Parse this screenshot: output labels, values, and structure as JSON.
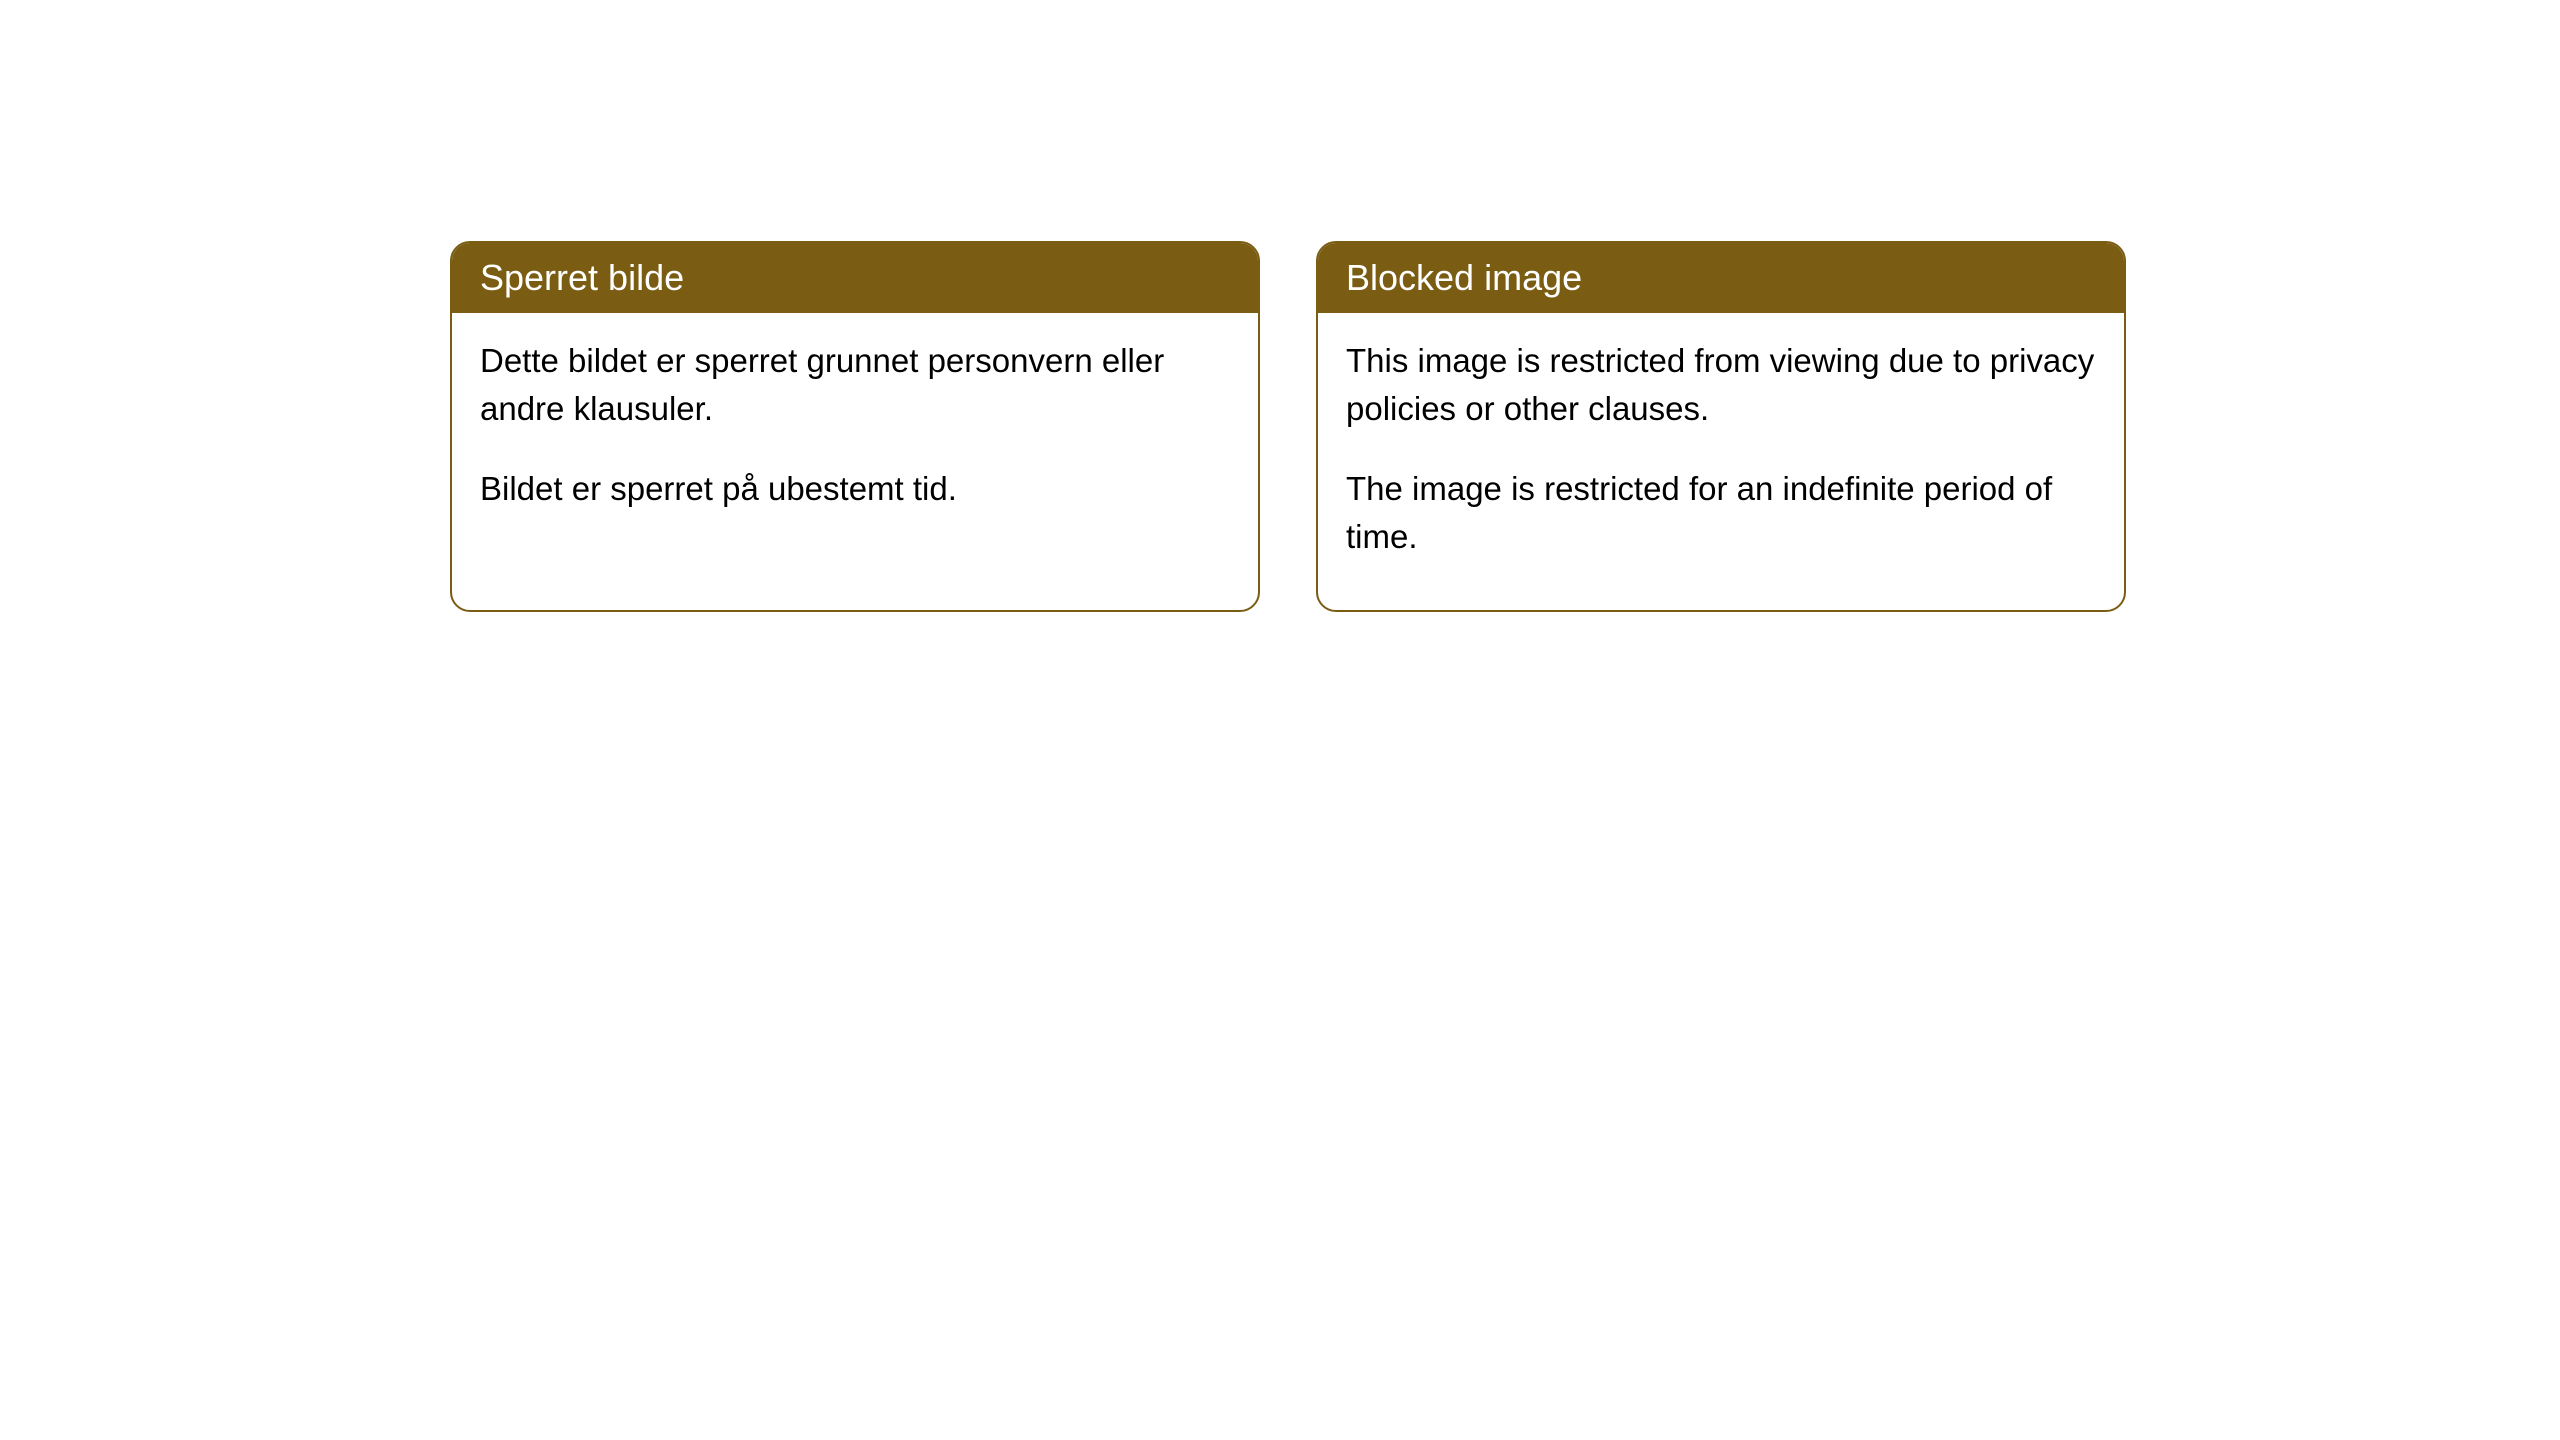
{
  "cards": [
    {
      "title": "Sperret bilde",
      "paragraph1": "Dette bildet er sperret grunnet personvern eller andre klausuler.",
      "paragraph2": "Bildet er sperret på ubestemt tid."
    },
    {
      "title": "Blocked image",
      "paragraph1": "This image is restricted from viewing due to privacy policies or other clauses.",
      "paragraph2": "The image is restricted for an indefinite period of time."
    }
  ],
  "styling": {
    "header_background": "#7a5c13",
    "header_text_color": "#ffffff",
    "border_color": "#7a5c13",
    "body_background": "#ffffff",
    "body_text_color": "#000000",
    "border_radius": 20,
    "header_fontsize": 36,
    "body_fontsize": 33
  }
}
